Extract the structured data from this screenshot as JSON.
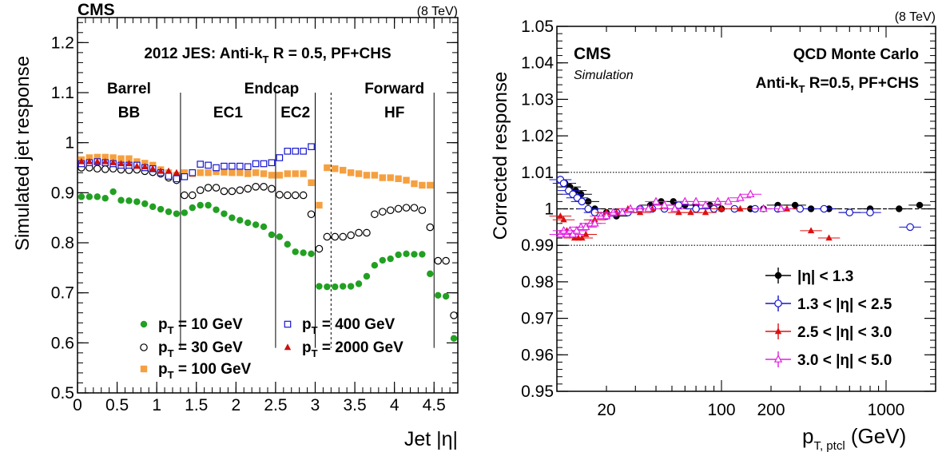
{
  "chart_data": [
    {
      "type": "scatter",
      "experiment": "CMS",
      "energy": "(8 TeV)",
      "title": "2012 JES: Anti-kT R = 0.5, PF+CHS",
      "title_parts": {
        "pre": "2012 JES: Anti-k",
        "sub": "T",
        "post": " R = 0.5, PF+CHS"
      },
      "xlabel": "Jet |η|",
      "ylabel": "Simulated jet response",
      "xlim": [
        0,
        4.8
      ],
      "ylim": [
        0.5,
        1.25
      ],
      "x_ticks": [
        "0",
        "0.5",
        "1",
        "1.5",
        "2",
        "2.5",
        "3",
        "3.5",
        "4",
        "4.5"
      ],
      "y_ticks": [
        "0.5",
        "0.6",
        "0.7",
        "0.8",
        "0.9",
        "1",
        "1.1",
        "1.2"
      ],
      "region_boundaries": [
        1.3,
        2.5,
        3.0,
        4.5
      ],
      "dashed_boundary": 3.2,
      "region_labels": [
        {
          "line1": "Barrel",
          "line2": "BB",
          "x": 0.65
        },
        {
          "line1": "Endcap",
          "line2": "EC1",
          "x": 1.9
        },
        {
          "line1": "",
          "line2": "EC2",
          "x": 2.75
        },
        {
          "line1": "Forward",
          "line2": "HF",
          "x": 4.0
        }
      ],
      "endcap_label_x": 2.45,
      "x": [
        0.05,
        0.15,
        0.25,
        0.35,
        0.45,
        0.55,
        0.65,
        0.75,
        0.85,
        0.95,
        1.05,
        1.15,
        1.25,
        1.35,
        1.45,
        1.55,
        1.65,
        1.75,
        1.85,
        1.95,
        2.05,
        2.15,
        2.25,
        2.35,
        2.45,
        2.55,
        2.65,
        2.75,
        2.85,
        2.95,
        3.05,
        3.15,
        3.25,
        3.35,
        3.45,
        3.55,
        3.65,
        3.75,
        3.85,
        3.95,
        4.05,
        4.15,
        4.25,
        4.35,
        4.45,
        4.55,
        4.65,
        4.75
      ],
      "series": [
        {
          "name": "10 GeV",
          "color": "#22a022",
          "marker": "dot",
          "values": [
            0.892,
            0.892,
            0.892,
            0.889,
            0.902,
            0.885,
            0.884,
            0.882,
            0.878,
            0.872,
            0.867,
            0.862,
            0.858,
            0.86,
            0.87,
            0.875,
            0.875,
            0.866,
            0.858,
            0.85,
            0.845,
            0.84,
            0.836,
            0.832,
            0.816,
            0.812,
            0.797,
            0.782,
            0.78,
            0.778,
            0.713,
            0.712,
            0.712,
            0.713,
            0.713,
            0.718,
            0.733,
            0.755,
            0.765,
            0.768,
            0.776,
            0.778,
            0.777,
            0.777,
            0.738,
            0.695,
            0.693,
            0.609
          ]
        },
        {
          "name": "30 GeV",
          "color": "#000000",
          "marker": "open-circle",
          "values": [
            0.95,
            0.95,
            0.948,
            0.947,
            0.948,
            0.946,
            0.945,
            0.946,
            0.943,
            0.941,
            0.938,
            0.93,
            0.925,
            0.895,
            0.895,
            0.905,
            0.91,
            0.91,
            0.903,
            0.903,
            0.905,
            0.908,
            0.912,
            0.912,
            0.908,
            0.896,
            0.895,
            0.895,
            0.895,
            0.857,
            0.788,
            0.812,
            0.812,
            0.812,
            0.815,
            0.82,
            0.82,
            0.857,
            0.862,
            0.865,
            0.868,
            0.87,
            0.87,
            0.865,
            0.831,
            0.764,
            0.764,
            0.655
          ]
        },
        {
          "name": "100 GeV",
          "color": "#f5a040",
          "marker": "square",
          "values": [
            0.966,
            0.97,
            0.971,
            0.971,
            0.97,
            0.968,
            0.968,
            0.962,
            0.959,
            0.955,
            0.946,
            0.94,
            0.935,
            0.94,
            0.938,
            0.94,
            0.94,
            0.942,
            0.941,
            0.94,
            0.94,
            0.938,
            0.94,
            0.938,
            0.935,
            0.935,
            0.938,
            0.938,
            0.938,
            0.92,
            0.875,
            0.95,
            0.948,
            0.945,
            0.94,
            0.938,
            0.935,
            0.935,
            0.93,
            0.93,
            0.928,
            0.925,
            0.918,
            0.915,
            0.915
          ]
        },
        {
          "name": "400 GeV",
          "color": "#1515d0",
          "marker": "open-square",
          "values": [
            0.958,
            0.96,
            0.962,
            0.96,
            0.958,
            0.955,
            0.955,
            0.955,
            0.95,
            0.948,
            0.94,
            0.933,
            0.928,
            0.932,
            0.94,
            0.957,
            0.955,
            0.95,
            0.953,
            0.953,
            0.953,
            0.952,
            0.958,
            0.958,
            0.96,
            0.97,
            0.983,
            0.983,
            0.983,
            0.992
          ]
        },
        {
          "name": "2000 GeV",
          "color": "#cc1010",
          "marker": "triangle",
          "values": [
            0.962,
            0.962,
            0.962,
            0.962,
            0.96,
            0.958,
            0.958,
            0.953,
            0.952,
            0.948,
            0.943,
            0.943,
            0.94
          ]
        }
      ],
      "legend": [
        {
          "pre": "p",
          "sub": "T",
          "post": " = 10 GeV",
          "series": 0
        },
        {
          "pre": "p",
          "sub": "T",
          "post": " = 400 GeV",
          "series": 3
        },
        {
          "pre": "p",
          "sub": "T",
          "post": " = 30 GeV",
          "series": 1
        },
        {
          "pre": "p",
          "sub": "T",
          "post": " = 2000 GeV",
          "series": 4
        },
        {
          "pre": "p",
          "sub": "T",
          "post": " = 100 GeV",
          "series": 2
        }
      ]
    },
    {
      "type": "scatter",
      "experiment": "CMS",
      "sublabel": "Simulation",
      "energy": "(8 TeV)",
      "annotation1": "QCD Monte Carlo",
      "annotation2_parts": {
        "pre": "Anti-k",
        "sub": "T",
        "post": " R=0.5, PF+CHS"
      },
      "xlabel_parts": {
        "pre": "p",
        "sub": "T, ptcl",
        "post": " (GeV)"
      },
      "ylabel": "Corrected response",
      "xscale": "log",
      "xlim": [
        10,
        2000
      ],
      "ylim": [
        0.95,
        1.05
      ],
      "x_ticks": [
        {
          "label": "20",
          "value": 20
        },
        {
          "label": "100",
          "value": 100
        },
        {
          "label": "200",
          "value": 200
        },
        {
          "label": "1000",
          "value": 1000
        }
      ],
      "y_ticks": [
        "0.95",
        "0.96",
        "0.97",
        "0.98",
        "0.99",
        "1",
        "1.01",
        "1.02",
        "1.03",
        "1.04",
        "1.05"
      ],
      "reference_lines": [
        1.01,
        1.0,
        0.99
      ],
      "series": [
        {
          "name": "|η| < 1.3",
          "color": "#000000",
          "marker": "dot",
          "x": [
            10.5,
            11.2,
            12,
            13,
            14,
            15.5,
            17,
            20,
            23,
            27,
            32,
            37,
            43,
            51,
            60,
            70,
            85,
            100,
            120,
            150,
            180,
            220,
            280,
            350,
            450,
            600,
            800,
            1200,
            1600
          ],
          "y": [
            1.008,
            1.007,
            1.006,
            1.005,
            1.004,
            1.002,
            1.0,
            0.999,
            0.998,
            0.999,
            1.0,
            1.001,
            1.002,
            1.002,
            1.001,
            1.001,
            1.001,
            1.0,
            1.0,
            1.0,
            1.0,
            1.001,
            1.001,
            1.0,
            1.0,
            0.999,
            1.0,
            1.0,
            1.001
          ]
        },
        {
          "name": "1.3 < |η| < 2.5",
          "color": "#1515d0",
          "marker": "open-circle",
          "x": [
            10.5,
            11,
            11.8,
            12.5,
            13.3,
            14.2,
            15.5,
            17,
            20,
            23,
            27,
            32,
            38,
            45,
            55,
            70,
            90,
            120,
            160,
            220,
            300,
            420,
            600,
            800,
            1400
          ],
          "y": [
            1.008,
            1.007,
            1.005,
            1.004,
            1.003,
            1.002,
            1.0,
            0.999,
            0.998,
            0.999,
            0.999,
            1.0,
            1.0,
            1.0,
            1.001,
            1.0,
            1.0,
            1.0,
            1.0,
            1.0,
            1.0,
            1.0,
            0.999,
            0.999,
            0.995
          ]
        },
        {
          "name": "2.5 < |η| < 3.0",
          "color": "#dd1010",
          "marker": "triangle",
          "x": [
            10.5,
            11,
            11.5,
            12.2,
            12.8,
            13.5,
            14.2,
            15,
            17,
            20,
            23,
            27,
            32,
            38,
            45,
            55,
            65,
            80,
            100,
            130,
            180,
            250,
            350,
            450
          ],
          "y": [
            0.998,
            0.997,
            0.994,
            0.993,
            0.992,
            0.992,
            0.992,
            0.993,
            0.997,
            0.999,
            0.999,
            1.0,
            0.999,
            1.0,
            1.001,
            0.999,
            0.999,
            0.999,
            1.0,
            1.0,
            1.0,
            1.0,
            0.994,
            0.992
          ]
        },
        {
          "name": "3.0 < |η| < 5.0",
          "color": "#e020e0",
          "marker": "open-triangle",
          "x": [
            10.5,
            11,
            11.5,
            12,
            12.5,
            13.2,
            14,
            15,
            16,
            17,
            18.5,
            20,
            22,
            25,
            28,
            32,
            36,
            40,
            45,
            52,
            60,
            70,
            80,
            95,
            110,
            130,
            150,
            180,
            230
          ],
          "y": [
            0.993,
            0.994,
            0.993,
            0.994,
            0.993,
            0.994,
            0.995,
            0.995,
            0.996,
            0.996,
            0.998,
            0.998,
            0.999,
            0.999,
            1.0,
            1.0,
            1.0,
            1.002,
            1.001,
            1.0,
            1.002,
            1.002,
            1.001,
            1.002,
            1.002,
            1.003,
            1.004,
            1.0,
            1.0
          ]
        }
      ],
      "legend": [
        {
          "text": "|η| < 1.3",
          "series": 0
        },
        {
          "text": "1.3 < |η| < 2.5",
          "series": 1
        },
        {
          "text": "2.5 < |η| < 3.0",
          "series": 2
        },
        {
          "text": "3.0 < |η| < 5.0",
          "series": 3
        }
      ]
    }
  ]
}
